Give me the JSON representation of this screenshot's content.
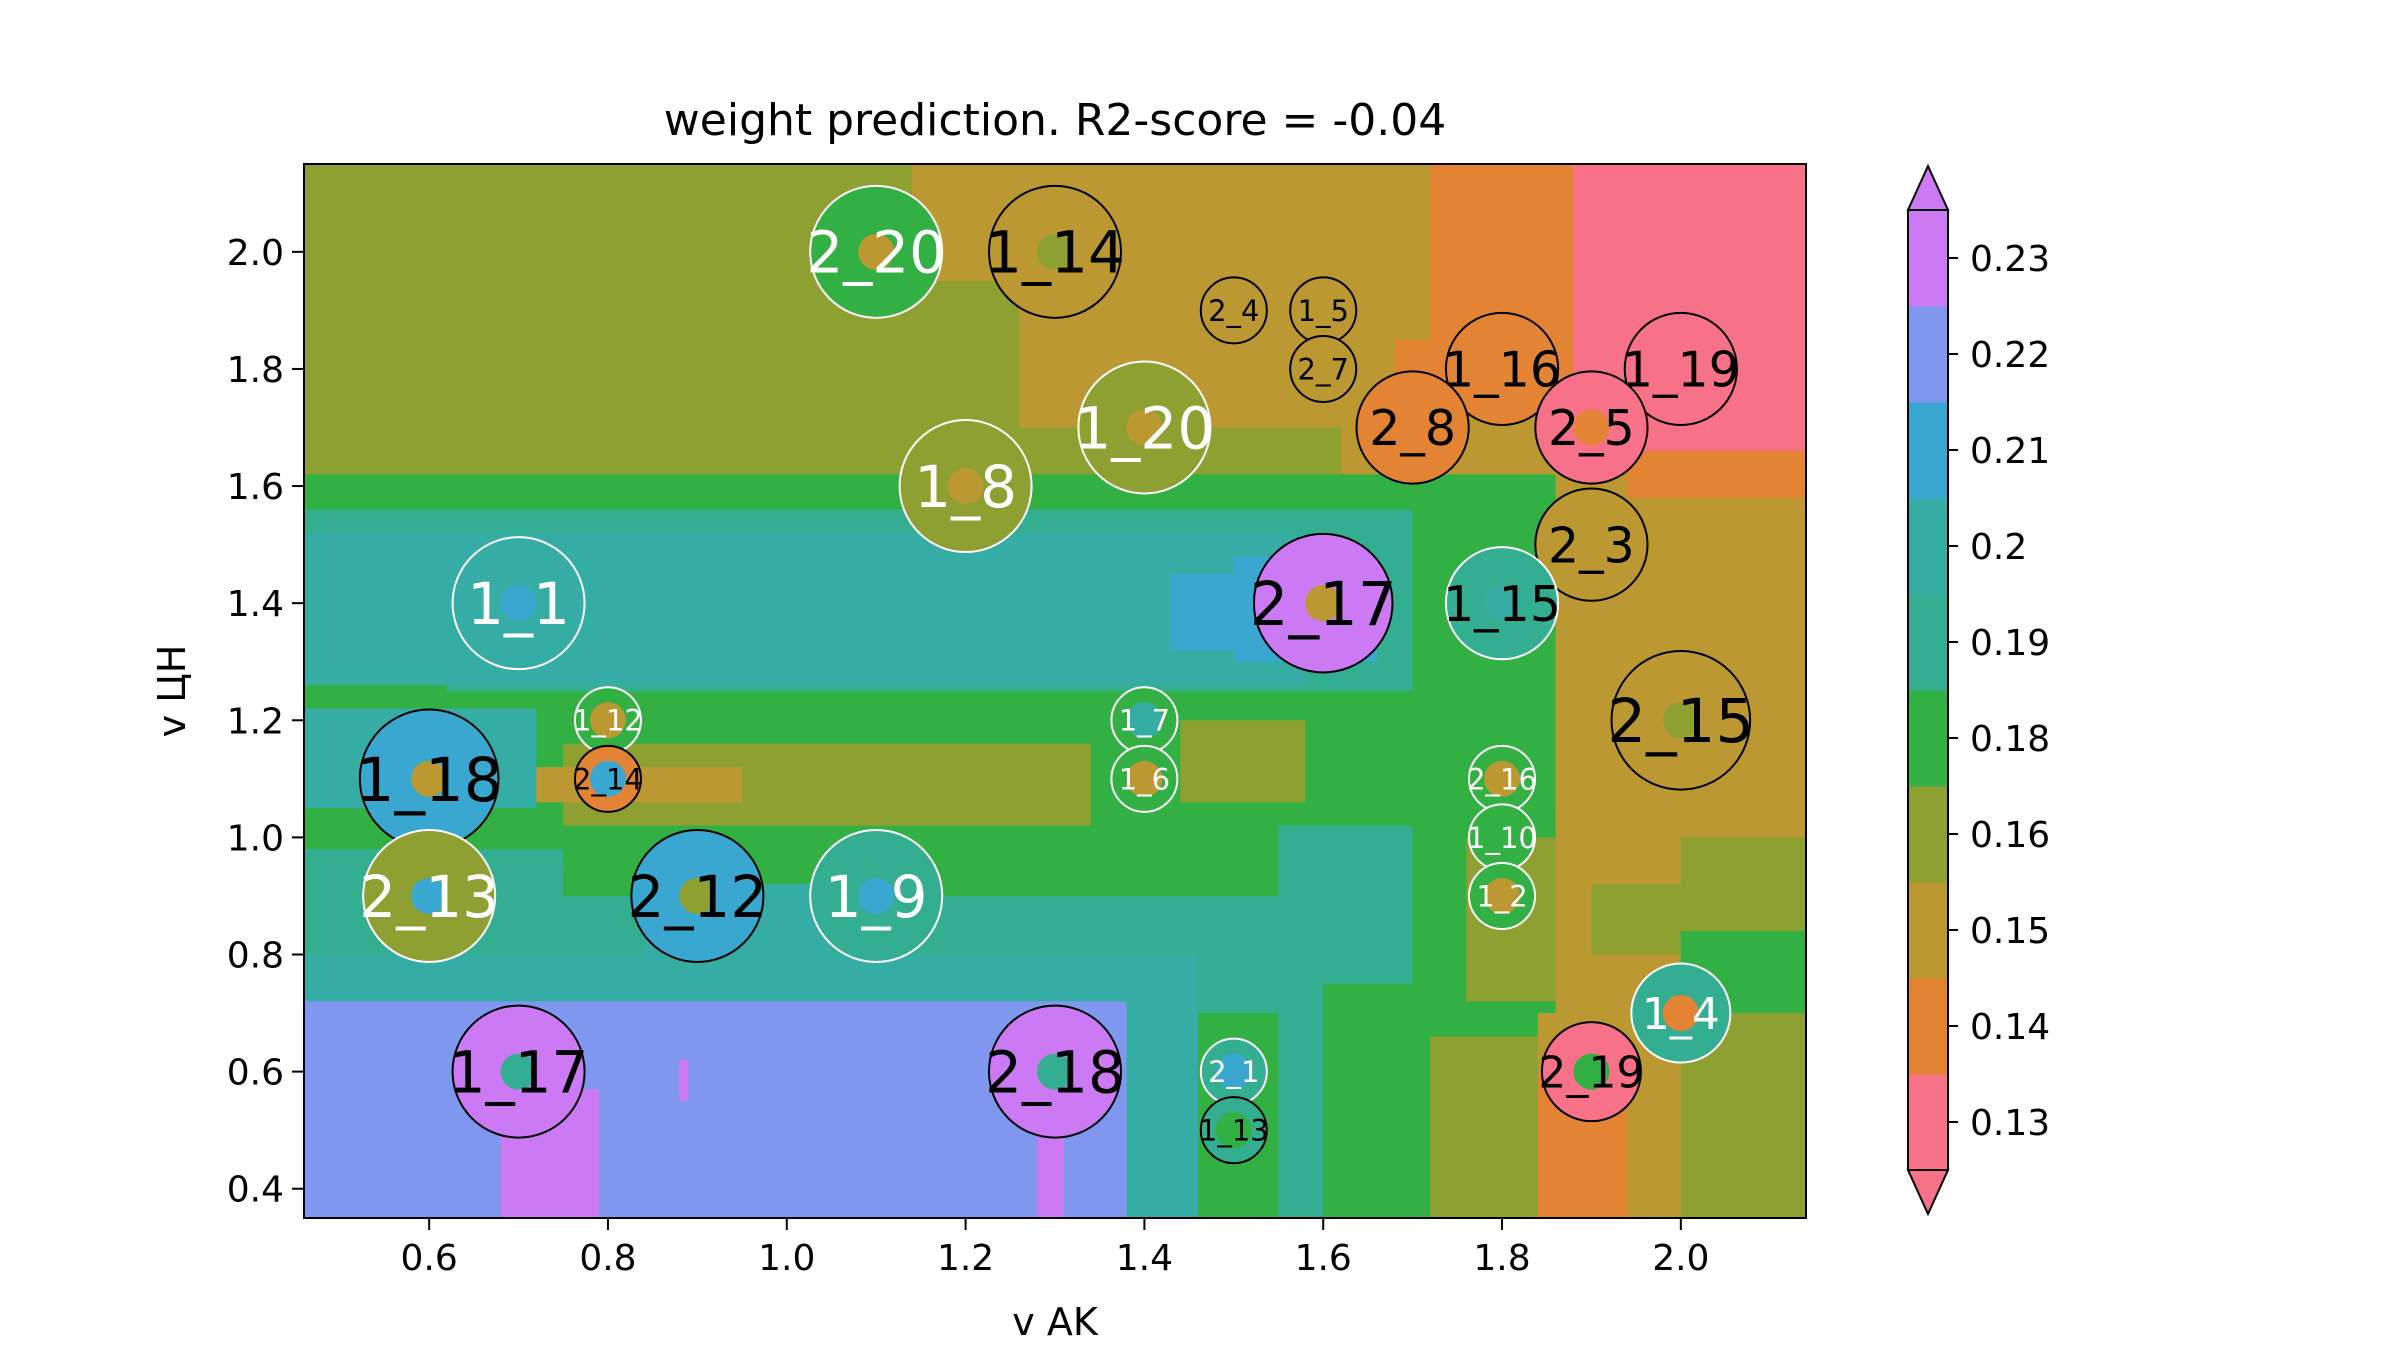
{
  "chart_data": {
    "type": "heatmap",
    "title": "weight prediction. R2-score = -0.04",
    "xlabel": "v AK",
    "ylabel": "v ЦН",
    "xlim": [
      0.46,
      2.14
    ],
    "ylim": [
      0.35,
      2.15
    ],
    "xticks": [
      "0.6",
      "0.8",
      "1.0",
      "1.2",
      "1.4",
      "1.6",
      "1.8",
      "2.0"
    ],
    "yticks": [
      "0.4",
      "0.6",
      "0.8",
      "1.0",
      "1.2",
      "1.4",
      "1.6",
      "1.8",
      "2.0"
    ],
    "colorbar": {
      "ticks": [
        "0.13",
        "0.14",
        "0.15",
        "0.16",
        "0.18",
        "0.19",
        "0.2",
        "0.21",
        "0.22",
        "0.23"
      ],
      "colors": [
        "#f77189",
        "#e38334",
        "#bb9832",
        "#8ea031",
        "#33b043",
        "#34ae91",
        "#36ada4",
        "#39a7d0",
        "#7f97ef",
        "#cc7af4"
      ]
    },
    "points": [
      {
        "label": "2_20",
        "x": 1.1,
        "y": 2.0,
        "level": 4,
        "size": 1.0,
        "fill": "#bb9832",
        "text": "#ffffff",
        "ring": "#ffffff"
      },
      {
        "label": "1_14",
        "x": 1.3,
        "y": 2.0,
        "level": 2,
        "size": 1.0,
        "fill": "#8ea031",
        "text": "#000000",
        "ring": "#000000"
      },
      {
        "label": "2_4",
        "x": 1.5,
        "y": 1.9,
        "level": 2,
        "size": 0.5,
        "fill": "#bb9832",
        "text": "#000000",
        "ring": "#000000"
      },
      {
        "label": "1_5",
        "x": 1.6,
        "y": 1.9,
        "level": 2,
        "size": 0.5,
        "fill": "#bb9832",
        "text": "#000000",
        "ring": "#000000"
      },
      {
        "label": "2_7",
        "x": 1.6,
        "y": 1.8,
        "level": 2,
        "size": 0.5,
        "fill": "#bb9832",
        "text": "#000000",
        "ring": "#000000"
      },
      {
        "label": "1_16",
        "x": 1.8,
        "y": 1.8,
        "level": 1,
        "size": 0.85,
        "fill": "#e38334",
        "text": "#000000",
        "ring": "#000000"
      },
      {
        "label": "1_19",
        "x": 2.0,
        "y": 1.8,
        "level": 0,
        "size": 0.85,
        "fill": "#f77189",
        "text": "#000000",
        "ring": "#000000"
      },
      {
        "label": "2_8",
        "x": 1.7,
        "y": 1.7,
        "level": 1,
        "size": 0.85,
        "fill": "#e38334",
        "text": "#000000",
        "ring": "#000000"
      },
      {
        "label": "2_5",
        "x": 1.9,
        "y": 1.7,
        "level": 0,
        "size": 0.85,
        "fill": "#e38334",
        "text": "#000000",
        "ring": "#000000"
      },
      {
        "label": "1_20",
        "x": 1.4,
        "y": 1.7,
        "level": 3,
        "size": 1.0,
        "fill": "#bb9832",
        "text": "#ffffff",
        "ring": "#ffffff"
      },
      {
        "label": "1_8",
        "x": 1.2,
        "y": 1.6,
        "level": 3,
        "size": 1.0,
        "fill": "#bb9832",
        "text": "#ffffff",
        "ring": "#ffffff"
      },
      {
        "label": "2_3",
        "x": 1.9,
        "y": 1.5,
        "level": 2,
        "size": 0.85,
        "fill": "#bb9832",
        "text": "#000000",
        "ring": "#000000"
      },
      {
        "label": "1_1",
        "x": 0.7,
        "y": 1.4,
        "level": 6,
        "size": 1.0,
        "fill": "#39a7d0",
        "text": "#ffffff",
        "ring": "#ffffff"
      },
      {
        "label": "2_17",
        "x": 1.6,
        "y": 1.4,
        "level": 9,
        "size": 1.05,
        "fill": "#bb9832",
        "text": "#000000",
        "ring": "#000000"
      },
      {
        "label": "1_15",
        "x": 1.8,
        "y": 1.4,
        "level": 5,
        "size": 0.85,
        "fill": "#36ada4",
        "text": "#000000",
        "ring": "#ffffff"
      },
      {
        "label": "1_12",
        "x": 0.8,
        "y": 1.2,
        "level": 4,
        "size": 0.5,
        "fill": "#bb9832",
        "text": "#ffffff",
        "ring": "#ffffff"
      },
      {
        "label": "1_7",
        "x": 1.4,
        "y": 1.2,
        "level": 4,
        "size": 0.5,
        "fill": "#36ada4",
        "text": "#ffffff",
        "ring": "#ffffff"
      },
      {
        "label": "2_15",
        "x": 2.0,
        "y": 1.2,
        "level": 2,
        "size": 1.05,
        "fill": "#8ea031",
        "text": "#000000",
        "ring": "#000000"
      },
      {
        "label": "1_18",
        "x": 0.6,
        "y": 1.1,
        "level": 7,
        "size": 1.05,
        "fill": "#bb9832",
        "text": "#000000",
        "ring": "#000000"
      },
      {
        "label": "2_14",
        "x": 0.8,
        "y": 1.1,
        "level": 1,
        "size": 0.5,
        "fill": "#39a7d0",
        "text": "#000000",
        "ring": "#000000"
      },
      {
        "label": "1_6",
        "x": 1.4,
        "y": 1.1,
        "level": 4,
        "size": 0.5,
        "fill": "#bb9832",
        "text": "#ffffff",
        "ring": "#ffffff"
      },
      {
        "label": "2_16",
        "x": 1.8,
        "y": 1.1,
        "level": 4,
        "size": 0.5,
        "fill": "#bb9832",
        "text": "#ffffff",
        "ring": "#ffffff"
      },
      {
        "label": "1_10",
        "x": 1.8,
        "y": 1.0,
        "level": 4,
        "size": 0.5,
        "fill": "#33b043",
        "text": "#ffffff",
        "ring": "#ffffff"
      },
      {
        "label": "2_13",
        "x": 0.6,
        "y": 0.9,
        "level": 3,
        "size": 1.0,
        "fill": "#39a7d0",
        "text": "#ffffff",
        "ring": "#ffffff"
      },
      {
        "label": "2_12",
        "x": 0.9,
        "y": 0.9,
        "level": 7,
        "size": 1.0,
        "fill": "#8ea031",
        "text": "#000000",
        "ring": "#000000"
      },
      {
        "label": "1_9",
        "x": 1.1,
        "y": 0.9,
        "level": 5,
        "size": 1.0,
        "fill": "#39a7d0",
        "text": "#ffffff",
        "ring": "#ffffff"
      },
      {
        "label": "1_2",
        "x": 1.8,
        "y": 0.9,
        "level": 4,
        "size": 0.5,
        "fill": "#bb9832",
        "text": "#ffffff",
        "ring": "#ffffff"
      },
      {
        "label": "1_4",
        "x": 2.0,
        "y": 0.7,
        "level": 5,
        "size": 0.75,
        "fill": "#e38334",
        "text": "#ffffff",
        "ring": "#ffffff"
      },
      {
        "label": "1_17",
        "x": 0.7,
        "y": 0.6,
        "level": 9,
        "size": 1.0,
        "fill": "#34ae91",
        "text": "#000000",
        "ring": "#000000"
      },
      {
        "label": "2_18",
        "x": 1.3,
        "y": 0.6,
        "level": 9,
        "size": 1.0,
        "fill": "#34ae91",
        "text": "#000000",
        "ring": "#000000"
      },
      {
        "label": "2_1",
        "x": 1.5,
        "y": 0.6,
        "level": 5,
        "size": 0.5,
        "fill": "#39a7d0",
        "text": "#ffffff",
        "ring": "#ffffff"
      },
      {
        "label": "2_19",
        "x": 1.9,
        "y": 0.6,
        "level": 0,
        "size": 0.75,
        "fill": "#33b043",
        "text": "#000000",
        "ring": "#000000"
      },
      {
        "label": "1_13",
        "x": 1.5,
        "y": 0.5,
        "level": 5,
        "size": 0.5,
        "fill": "#33b043",
        "text": "#000000",
        "ring": "#000000"
      }
    ]
  }
}
